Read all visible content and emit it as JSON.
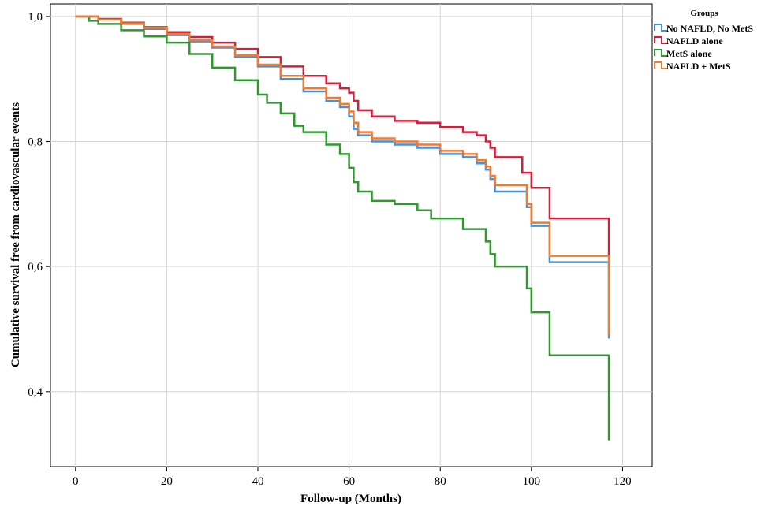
{
  "chart_data": {
    "type": "line",
    "step": true,
    "xlabel": "Follow-up (Months)",
    "ylabel": "Cumulative survival free from cardiovascular events",
    "xlim": [
      -5.5,
      126.5
    ],
    "ylim": [
      0.28,
      1.02
    ],
    "x_ticks": [
      0,
      20,
      40,
      60,
      80,
      100,
      120
    ],
    "x_tick_labels": [
      "0",
      "20",
      "40",
      "60",
      "80",
      "100",
      "120"
    ],
    "y_ticks": [
      0.4,
      0.6,
      0.8,
      1.0
    ],
    "y_tick_labels": [
      "0,4",
      "0,6",
      "0,8",
      "1,0"
    ],
    "grid": true,
    "legend": {
      "title": "Groups",
      "placement": "top-right-outside"
    },
    "series": [
      {
        "name": "No NAFLD, No MetS",
        "color": "#4a90d9",
        "x": [
          0,
          5,
          10,
          15,
          20,
          25,
          30,
          35,
          40,
          45,
          50,
          55,
          58,
          60,
          61,
          62,
          65,
          70,
          75,
          80,
          85,
          88,
          90,
          91,
          92,
          95,
          98,
          99,
          100,
          103,
          104,
          110,
          117,
          117
        ],
        "y": [
          1.0,
          0.995,
          0.988,
          0.98,
          0.97,
          0.96,
          0.95,
          0.935,
          0.92,
          0.9,
          0.88,
          0.865,
          0.855,
          0.84,
          0.82,
          0.81,
          0.8,
          0.795,
          0.79,
          0.78,
          0.775,
          0.765,
          0.755,
          0.74,
          0.72,
          0.72,
          0.72,
          0.695,
          0.665,
          0.665,
          0.607,
          0.607,
          0.607,
          0.485
        ]
      },
      {
        "name": "NAFLD alone",
        "color": "#d21f3c",
        "x": [
          0,
          5,
          10,
          15,
          20,
          25,
          30,
          35,
          40,
          45,
          50,
          55,
          58,
          60,
          61,
          62,
          65,
          70,
          75,
          80,
          85,
          88,
          90,
          91,
          92,
          95,
          98,
          99,
          100,
          103,
          104,
          110,
          117,
          117
        ],
        "y": [
          1.0,
          0.996,
          0.99,
          0.983,
          0.975,
          0.967,
          0.958,
          0.948,
          0.935,
          0.92,
          0.905,
          0.893,
          0.885,
          0.878,
          0.865,
          0.85,
          0.84,
          0.833,
          0.83,
          0.823,
          0.815,
          0.81,
          0.8,
          0.79,
          0.775,
          0.775,
          0.75,
          0.75,
          0.726,
          0.726,
          0.677,
          0.677,
          0.677,
          0.617
        ]
      },
      {
        "name": "MetS alone",
        "color": "#2e9a2e",
        "x": [
          0,
          3,
          5,
          10,
          15,
          20,
          25,
          30,
          35,
          40,
          42,
          45,
          48,
          50,
          55,
          58,
          60,
          61,
          62,
          65,
          70,
          75,
          78,
          80,
          85,
          88,
          90,
          91,
          92,
          95,
          98,
          99,
          100,
          103,
          104,
          110,
          117,
          117
        ],
        "y": [
          1.0,
          0.993,
          0.988,
          0.978,
          0.968,
          0.958,
          0.94,
          0.918,
          0.898,
          0.875,
          0.862,
          0.845,
          0.825,
          0.815,
          0.795,
          0.78,
          0.758,
          0.735,
          0.72,
          0.705,
          0.7,
          0.69,
          0.677,
          0.677,
          0.66,
          0.66,
          0.64,
          0.62,
          0.6,
          0.6,
          0.6,
          0.565,
          0.527,
          0.527,
          0.458,
          0.458,
          0.458,
          0.322
        ]
      },
      {
        "name": "NAFLD + MetS",
        "color": "#f07b2e",
        "x": [
          0,
          5,
          10,
          15,
          20,
          25,
          30,
          35,
          40,
          45,
          50,
          55,
          58,
          60,
          61,
          62,
          65,
          70,
          75,
          80,
          85,
          88,
          90,
          91,
          92,
          95,
          98,
          99,
          100,
          103,
          104,
          110,
          117,
          117
        ],
        "y": [
          1.0,
          0.995,
          0.989,
          0.982,
          0.972,
          0.962,
          0.952,
          0.938,
          0.923,
          0.905,
          0.885,
          0.87,
          0.86,
          0.848,
          0.83,
          0.815,
          0.805,
          0.8,
          0.795,
          0.785,
          0.78,
          0.77,
          0.76,
          0.745,
          0.73,
          0.73,
          0.73,
          0.7,
          0.67,
          0.67,
          0.617,
          0.617,
          0.617,
          0.49
        ]
      }
    ]
  }
}
